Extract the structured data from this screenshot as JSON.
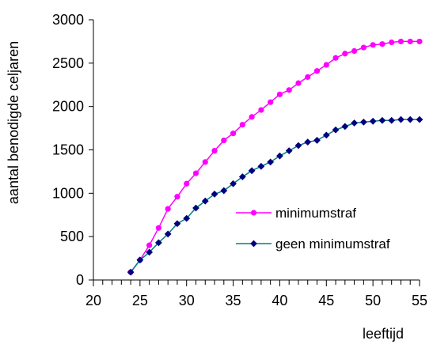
{
  "chart_data": {
    "type": "line",
    "title": "",
    "xlabel": "leeftijd",
    "ylabel": "aantal benodigde  celjaren",
    "xlim": [
      20,
      55
    ],
    "ylim": [
      0,
      3000
    ],
    "x_ticks": [
      20,
      25,
      30,
      35,
      40,
      45,
      50,
      55
    ],
    "y_ticks": [
      0,
      500,
      1000,
      1500,
      2000,
      2500,
      3000
    ],
    "grid": false,
    "legend_position": "right",
    "series": [
      {
        "name": "minimumstraf",
        "color": "#FF00FF",
        "marker": "circle",
        "x": [
          24,
          25,
          26,
          27,
          28,
          29,
          30,
          31,
          32,
          33,
          34,
          35,
          36,
          37,
          38,
          39,
          40,
          41,
          42,
          43,
          44,
          45,
          46,
          47,
          48,
          49,
          50,
          51,
          52,
          53,
          54,
          55
        ],
        "y": [
          90,
          230,
          400,
          600,
          820,
          960,
          1110,
          1230,
          1360,
          1490,
          1610,
          1690,
          1790,
          1880,
          1960,
          2050,
          2140,
          2190,
          2270,
          2340,
          2410,
          2480,
          2560,
          2610,
          2640,
          2680,
          2710,
          2720,
          2740,
          2750,
          2750,
          2750
        ]
      },
      {
        "name": "geen minimumstraf",
        "color": "#000080",
        "line_color": "#008080",
        "marker": "diamond",
        "x": [
          24,
          25,
          26,
          27,
          28,
          29,
          30,
          31,
          32,
          33,
          34,
          35,
          36,
          37,
          38,
          39,
          40,
          41,
          42,
          43,
          44,
          45,
          46,
          47,
          48,
          49,
          50,
          51,
          52,
          53,
          54,
          55
        ],
        "y": [
          90,
          230,
          320,
          430,
          530,
          650,
          710,
          830,
          910,
          990,
          1030,
          1110,
          1190,
          1260,
          1310,
          1360,
          1430,
          1490,
          1550,
          1590,
          1610,
          1670,
          1730,
          1770,
          1810,
          1820,
          1830,
          1840,
          1840,
          1850,
          1850,
          1850
        ]
      }
    ]
  }
}
